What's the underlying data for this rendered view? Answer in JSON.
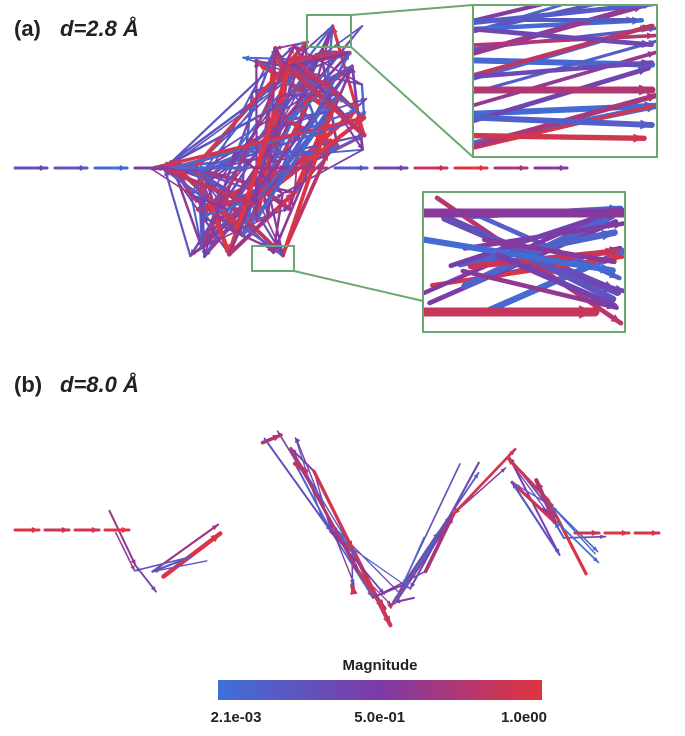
{
  "panels": [
    {
      "label": "(a)",
      "caption": "d=2.8 Å"
    },
    {
      "label": "(b)",
      "caption": "d=8.0 Å"
    }
  ],
  "colorbar": {
    "title": "Magnitude",
    "ticks": [
      {
        "value": 0.0021,
        "label": "2.1e-03"
      },
      {
        "value": 0.5,
        "label": "5.0e-01"
      },
      {
        "value": 1.0,
        "label": "1.0e00"
      }
    ]
  }
}
